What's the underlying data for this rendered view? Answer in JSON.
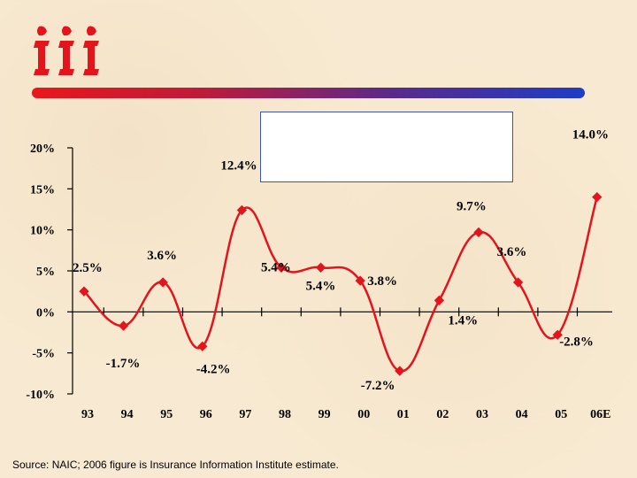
{
  "logo": {
    "text": "iii"
  },
  "source_note": "Source:  NAIC; 2006 figure is Insurance Information Institute estimate.",
  "colors": {
    "series": "#e3141c",
    "accent_start": "#e8181a",
    "accent_end": "#1f3cc8",
    "axis": "#000000"
  },
  "chart_data": {
    "type": "line",
    "title": "",
    "xlabel": "",
    "ylabel": "",
    "categories": [
      "93",
      "94",
      "95",
      "96",
      "97",
      "98",
      "99",
      "00",
      "01",
      "02",
      "03",
      "04",
      "05",
      "06E"
    ],
    "ylim": [
      -10,
      20
    ],
    "yticks": [
      {
        "value": 20,
        "label": "20%"
      },
      {
        "value": 15,
        "label": "15%"
      },
      {
        "value": 10,
        "label": "10%"
      },
      {
        "value": 5,
        "label": "5%"
      },
      {
        "value": 0,
        "label": "0%"
      },
      {
        "value": -5,
        "label": "-5%"
      },
      {
        "value": -10,
        "label": "-10%"
      }
    ],
    "series": [
      {
        "values": [
          2.5,
          -1.7,
          3.6,
          -4.2,
          12.4,
          5.4,
          5.4,
          3.8,
          -7.2,
          1.4,
          9.7,
          3.6,
          -2.8,
          14.0
        ],
        "labels": [
          "2.5%",
          "-1.7%",
          "3.6%",
          "-4.2%",
          "12.4%",
          "5.4%",
          "5.4%",
          "3.8%",
          "-7.2%",
          "1.4%",
          "9.7%",
          "3.6%",
          "-2.8%",
          "14.0%"
        ]
      }
    ],
    "grid": false,
    "legend": "none"
  }
}
